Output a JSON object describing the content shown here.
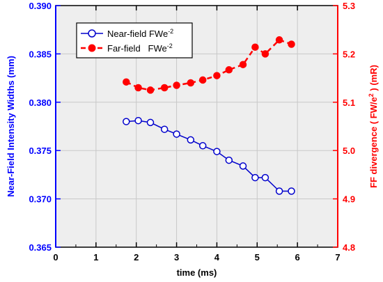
{
  "chart_data": {
    "type": "line",
    "xlabel": "time (ms)",
    "ylabel_left": "Near-Field Intensity Widths (mm)",
    "ylabel_right": "FF divergence ( FW/e^2 )  (mR)",
    "ylabel_right_parts": {
      "prefix": "FF divergence ( FW/e",
      "superscript": "2",
      "suffix": " )  (mR)"
    },
    "xlim": [
      0,
      7
    ],
    "ylim_left": [
      0.365,
      0.39
    ],
    "ylim_right": [
      4.8,
      5.3
    ],
    "x_ticks": [
      "0",
      "1",
      "2",
      "3",
      "4",
      "5",
      "6",
      "7"
    ],
    "y_left_ticks": [
      "0.365",
      "0.370",
      "0.375",
      "0.380",
      "0.385",
      "0.390"
    ],
    "y_right_ticks": [
      "4.8",
      "4.9",
      "5.0",
      "5.1",
      "5.2",
      "5.3"
    ],
    "grid": true,
    "legend_position": "top-left",
    "colors": {
      "left_axis": "#0000ff",
      "right_axis": "#ff0000",
      "plot_background": "#eeeeee",
      "grid": "#c8c8c8"
    },
    "series": [
      {
        "name": "Near-field FWe",
        "name_superscript": "-2",
        "axis": "left",
        "color": "#0000cc",
        "marker": "open-circle",
        "line": "solid",
        "x": [
          1.75,
          2.05,
          2.35,
          2.7,
          3.0,
          3.35,
          3.65,
          4.0,
          4.3,
          4.65,
          4.95,
          5.2,
          5.55,
          5.85
        ],
        "y": [
          0.378,
          0.3781,
          0.3779,
          0.3772,
          0.3767,
          0.3761,
          0.3755,
          0.3749,
          0.374,
          0.3734,
          0.3722,
          0.3722,
          0.3708,
          0.3708
        ]
      },
      {
        "name": "Far-field   FWe",
        "name_superscript": "-2",
        "axis": "right",
        "color": "#ff0000",
        "marker": "filled-circle",
        "line": "dashed",
        "x": [
          1.75,
          2.05,
          2.35,
          2.7,
          3.0,
          3.35,
          3.65,
          4.0,
          4.3,
          4.65,
          4.95,
          5.2,
          5.55,
          5.85
        ],
        "y": [
          5.142,
          5.13,
          5.125,
          5.13,
          5.135,
          5.14,
          5.146,
          5.155,
          5.167,
          5.178,
          5.214,
          5.2,
          5.229,
          5.22
        ]
      }
    ]
  }
}
